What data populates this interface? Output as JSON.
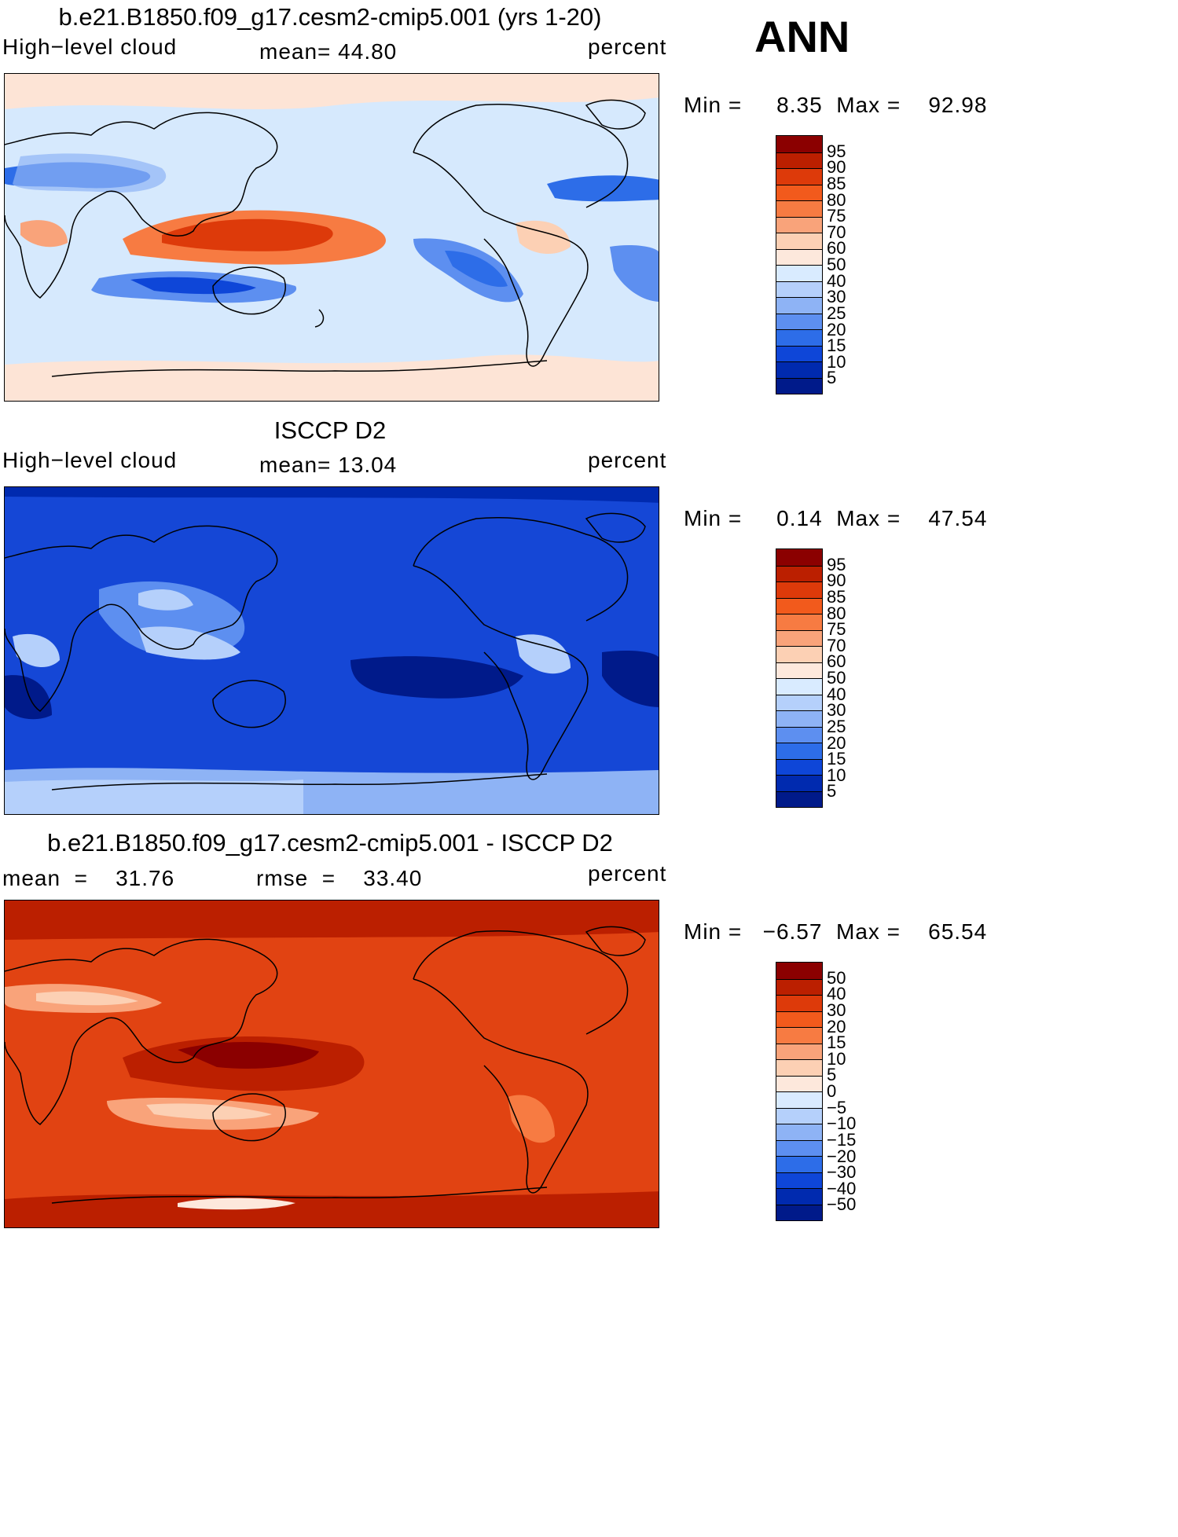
{
  "header": {
    "season": "ANN"
  },
  "panels": [
    {
      "title": "b.e21.B1850.f09_g17.cesm2-cmip5.001 (yrs 1-20)",
      "left_label": "High−level cloud",
      "center_label": "mean=   44.80",
      "right_label": "percent",
      "minmax": "Min =     8.35  Max =    92.98",
      "colorbar": {
        "labels": [
          "95",
          "90",
          "85",
          "80",
          "75",
          "70",
          "60",
          "50",
          "40",
          "30",
          "25",
          "20",
          "15",
          "10",
          "5"
        ],
        "colors": [
          "#8b0000",
          "#bb1f00",
          "#dd3a0a",
          "#f25a1c",
          "#f77b42",
          "#f9a37a",
          "#fcd0b4",
          "#fde8dc",
          "#d9ebff",
          "#b5d0fb",
          "#8eb3f5",
          "#5d8ff0",
          "#2d6de8",
          "#0e46d8",
          "#002aaf",
          "#001a8a"
        ]
      },
      "base_color": "#d6e9fd"
    },
    {
      "title": "ISCCP D2",
      "left_label": "High−level cloud",
      "center_label": "mean=   13.04",
      "right_label": "percent",
      "minmax": "Min =     0.14  Max =    47.54",
      "colorbar": {
        "labels": [
          "95",
          "90",
          "85",
          "80",
          "75",
          "70",
          "60",
          "50",
          "40",
          "30",
          "25",
          "20",
          "15",
          "10",
          "5"
        ],
        "colors": [
          "#8b0000",
          "#bb1f00",
          "#dd3a0a",
          "#f25a1c",
          "#f77b42",
          "#f9a37a",
          "#fcd0b4",
          "#fde8dc",
          "#d9ebff",
          "#b5d0fb",
          "#8eb3f5",
          "#5d8ff0",
          "#2d6de8",
          "#0e46d8",
          "#002aaf",
          "#001a8a"
        ]
      },
      "base_color": "#1547d6"
    },
    {
      "title": "b.e21.B1850.f09_g17.cesm2-cmip5.001 - ISCCP D2",
      "left_label": "mean  =    31.76",
      "center_label": "rmse  =    33.40",
      "right_label": "percent",
      "minmax": "Min =   −6.57  Max =    65.54",
      "colorbar": {
        "labels": [
          "50",
          "40",
          "30",
          "20",
          "15",
          "10",
          "5",
          "0",
          "−5",
          "−10",
          "−15",
          "−20",
          "−30",
          "−40",
          "−50"
        ],
        "colors": [
          "#8b0000",
          "#bb1f00",
          "#dd3a0a",
          "#f25a1c",
          "#f77b42",
          "#f9a37a",
          "#fcd0b4",
          "#fde8dc",
          "#d9ebff",
          "#b5d0fb",
          "#8eb3f5",
          "#5d8ff0",
          "#2d6de8",
          "#0e46d8",
          "#002aaf",
          "#001a8a"
        ]
      },
      "base_color": "#e14312"
    }
  ]
}
